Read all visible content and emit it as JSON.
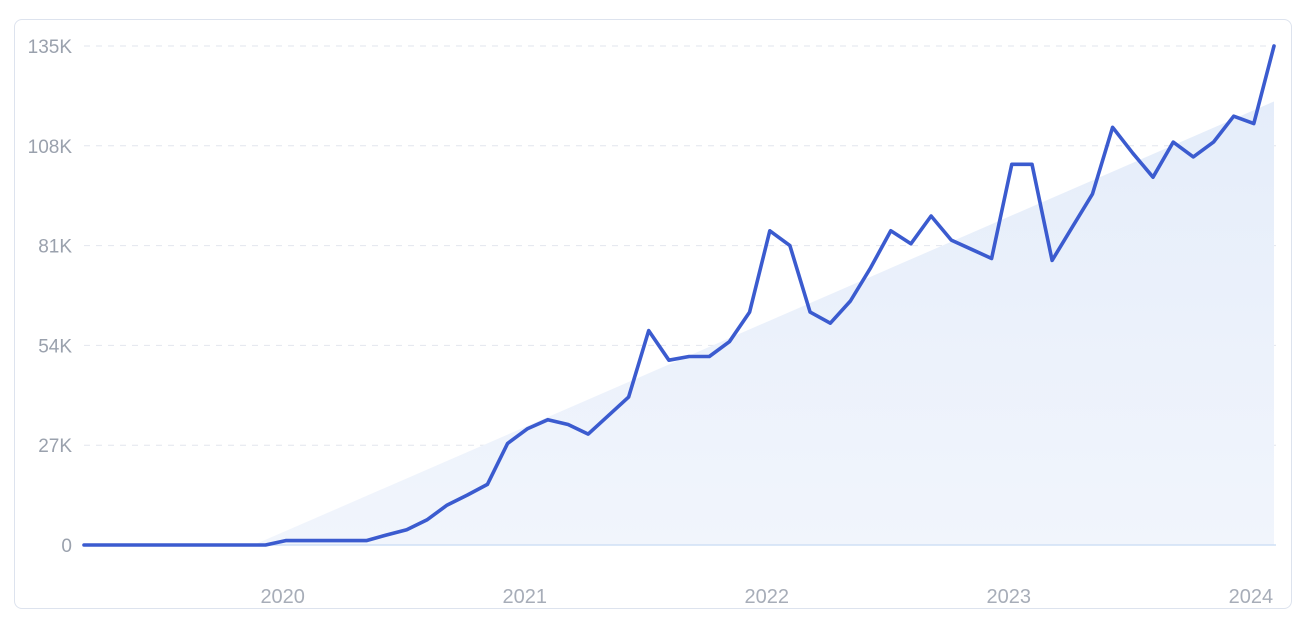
{
  "chart_data": {
    "type": "line",
    "title": "",
    "xlabel": "",
    "ylabel": "",
    "x_ticks": [
      "2020",
      "2021",
      "2022",
      "2023",
      "2024"
    ],
    "y_ticks": [
      "0",
      "27K",
      "54K",
      "81K",
      "108K",
      "135K"
    ],
    "y_tick_values": [
      0,
      27000,
      54000,
      81000,
      108000,
      135000
    ],
    "ylim": [
      0,
      135000
    ],
    "grid": "horizontal-dashed",
    "x": [
      "2019-09",
      "2019-10",
      "2019-11",
      "2019-12",
      "2020-01",
      "2020-02",
      "2020-03",
      "2020-04",
      "2020-05",
      "2020-06",
      "2020-07",
      "2020-08",
      "2020-09",
      "2020-10",
      "2020-11",
      "2020-12",
      "2021-01",
      "2021-02",
      "2021-03",
      "2021-04",
      "2021-05",
      "2021-06",
      "2021-07",
      "2021-08",
      "2021-09",
      "2021-10",
      "2021-11",
      "2021-12",
      "2022-01",
      "2022-02",
      "2022-03",
      "2022-04",
      "2022-05",
      "2022-06",
      "2022-07",
      "2022-08",
      "2022-09",
      "2022-10",
      "2022-11",
      "2022-12",
      "2023-01",
      "2023-02",
      "2023-03",
      "2023-04",
      "2023-05",
      "2023-06",
      "2023-07",
      "2023-08",
      "2023-09",
      "2023-10",
      "2023-11",
      "2023-12",
      "2024-01",
      "2024-02",
      "2024-03",
      "2024-04",
      "2024-05",
      "2024-06",
      "2024-07",
      "2024-08"
    ],
    "series": [
      {
        "values": [
          0,
          0,
          0,
          0,
          0,
          0,
          0,
          0,
          0,
          0,
          1200,
          1200,
          1200,
          1200,
          1200,
          2700,
          4100,
          6800,
          10800,
          13500,
          16400,
          27500,
          31500,
          33900,
          32600,
          30000,
          35000,
          40000,
          58000,
          50000,
          51000,
          51000,
          55000,
          63000,
          85000,
          81000,
          63000,
          60000,
          66000,
          75000,
          85000,
          81500,
          89000,
          82500,
          80000,
          77500,
          103000,
          103000,
          77000,
          86000,
          95000,
          113000,
          106000,
          99500,
          109000,
          105000,
          109000,
          116000,
          114000,
          135000
        ]
      }
    ],
    "trend_area": {
      "start": "2020-06",
      "end": "2024-08",
      "start_value": 0,
      "end_value": 120000
    },
    "colors": {
      "line": "#3b5bcf",
      "area_fill": "#e9f0fb",
      "grid": "#e2e6ee",
      "baseline": "#cfe0f5",
      "tick_text": "#9aa1ad"
    }
  }
}
